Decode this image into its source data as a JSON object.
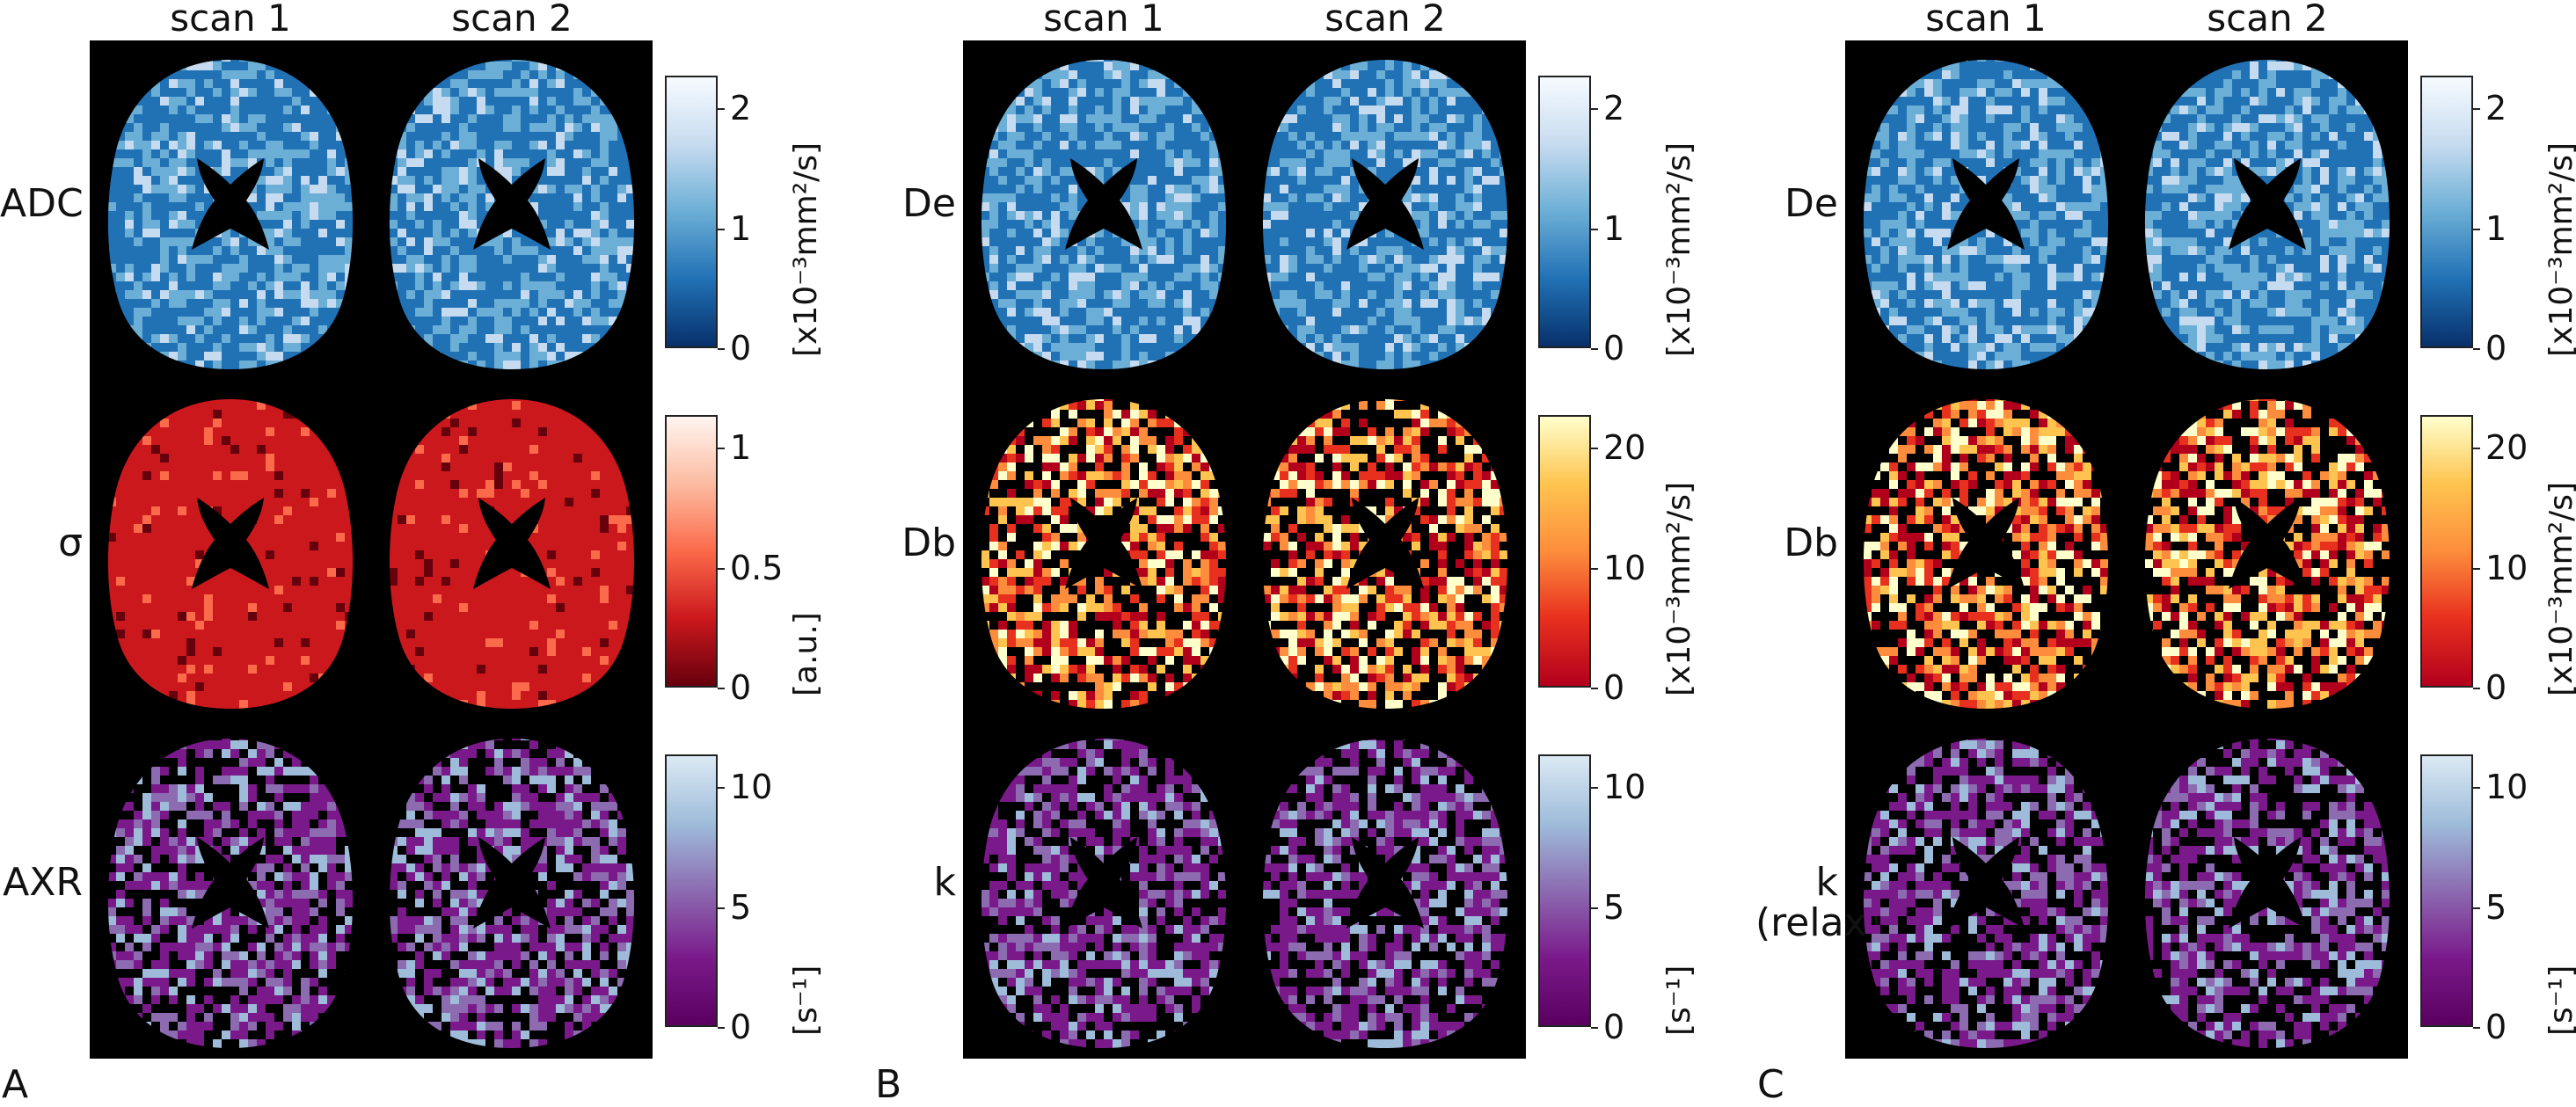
{
  "panels": [
    {
      "label": "A",
      "columns": [
        "scan 1",
        "scan 2"
      ],
      "rows": [
        {
          "label": "ADC",
          "colormap": "blue",
          "ticks": [
            "2",
            "1",
            "0"
          ],
          "unit": "[x10⁻³mm²/s]"
        },
        {
          "label": "σ",
          "colormap": "red",
          "ticks": [
            "1",
            "0.5",
            "0"
          ],
          "unit": "[a.u.]"
        },
        {
          "label": "AXR",
          "colormap": "purple",
          "ticks": [
            "10",
            "5",
            "0"
          ],
          "unit": "[s⁻¹]"
        }
      ]
    },
    {
      "label": "B",
      "columns": [
        "scan 1",
        "scan 2"
      ],
      "rows": [
        {
          "label": "De",
          "colormap": "blue",
          "ticks": [
            "2",
            "1",
            "0"
          ],
          "unit": "[x10⁻³mm²/s]"
        },
        {
          "label": "Db",
          "colormap": "hot",
          "ticks": [
            "20",
            "10",
            "0"
          ],
          "unit": "[x10⁻³mm²/s]"
        },
        {
          "label": "k",
          "colormap": "purple",
          "ticks": [
            "10",
            "5",
            "0"
          ],
          "unit": "[s⁻¹]"
        }
      ]
    },
    {
      "label": "C",
      "columns": [
        "scan 1",
        "scan 2"
      ],
      "rows": [
        {
          "label": "De",
          "colormap": "blue",
          "ticks": [
            "2",
            "1",
            "0"
          ],
          "unit": "[x10⁻³mm²/s]"
        },
        {
          "label": "Db",
          "colormap": "hot",
          "ticks": [
            "20",
            "10",
            "0"
          ],
          "unit": "[x10⁻³mm²/s]"
        },
        {
          "label": "k\n(relax)",
          "colormap": "purple",
          "ticks": [
            "10",
            "5",
            "0"
          ],
          "unit": "[s⁻¹]"
        }
      ]
    }
  ],
  "colormaps": {
    "blue": [
      "#08306b",
      "#2171b5",
      "#6baed6",
      "#c6dbef",
      "#f7fbff"
    ],
    "red": [
      "#67000d",
      "#cb181d",
      "#fb6a4a",
      "#fcbba1",
      "#fff5f0"
    ],
    "hot": [
      "#b2001c",
      "#e8301f",
      "#fd8d3c",
      "#fec44f",
      "#ffffcc"
    ],
    "purple": [
      "#5a0060",
      "#7a1a8a",
      "#8c6bb1",
      "#9ebcda",
      "#dce9f4"
    ]
  }
}
